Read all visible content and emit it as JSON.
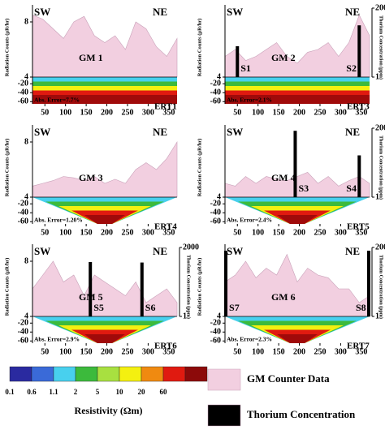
{
  "chart_data": [
    {
      "type": "area",
      "sw": "SW",
      "ne": "NE",
      "profile_label": "GM 1",
      "section_label": "ERT1",
      "error_label": "Abs. Error=7.7%",
      "y_label": "Radiation Counts (μR/hr)",
      "x": [
        20,
        45,
        70,
        95,
        120,
        145,
        170,
        195,
        220,
        245,
        270,
        295,
        320,
        345,
        370
      ],
      "series": [
        {
          "color": "#f2cfe0",
          "values": [
            8.5,
            8.2,
            7.5,
            6.8,
            8,
            8.4,
            7,
            6.5,
            7,
            6,
            8,
            7.5,
            6.2,
            5.5,
            6.8
          ]
        }
      ],
      "xlim": [
        20,
        370
      ],
      "xticks": [
        50,
        100,
        150,
        200,
        250,
        300,
        350
      ],
      "ylim": [
        4,
        9
      ],
      "yticks": [
        8,
        4
      ],
      "depth_lim": [
        -5,
        -65
      ],
      "depth_ticks": [
        -20,
        -40,
        -60
      ]
    },
    {
      "type": "area",
      "sw": "SW",
      "ne": "NE",
      "profile_label": "GM 2",
      "section_label": "ERT3",
      "error_label": "Abs. Error=2.1%",
      "y_label": "Radiation Counts (μR/hr)",
      "y2_label": "Thorium Concentration (ppm)",
      "x": [
        20,
        45,
        70,
        95,
        120,
        145,
        170,
        195,
        220,
        245,
        270,
        295,
        320,
        345,
        370
      ],
      "series": [
        {
          "color": "#f2cfe0",
          "values": [
            5.5,
            6,
            5.2,
            5.5,
            6,
            6.5,
            5.5,
            5,
            5.8,
            6,
            6.5,
            5.5,
            6.5,
            8.5,
            7
          ]
        }
      ],
      "thorium": {
        "color": "#000000",
        "labels": [
          "S1",
          "S2"
        ],
        "x": [
          50,
          345
        ],
        "values": [
          30,
          300
        ]
      },
      "xlim": [
        20,
        370
      ],
      "xticks": [
        50,
        100,
        150,
        200,
        250,
        300,
        350
      ],
      "ylim": [
        4,
        9
      ],
      "yticks": [
        4
      ],
      "y2lim": [
        1,
        2000
      ],
      "y2ticks": [
        2000,
        1
      ],
      "y2log": true,
      "depth_lim": [
        -5,
        -65
      ],
      "depth_ticks": [
        -20,
        -40,
        -60
      ]
    },
    {
      "type": "area",
      "sw": "SW",
      "ne": "NE",
      "profile_label": "GM 3",
      "section_label": "ERT4",
      "error_label": "Abs. Error=1.20%",
      "y_label": "Radiation Counts (μR/hr)",
      "x": [
        20,
        45,
        70,
        95,
        120,
        145,
        170,
        195,
        220,
        245,
        270,
        295,
        320,
        345,
        370
      ],
      "series": [
        {
          "color": "#f2cfe0",
          "values": [
            4.8,
            5,
            5.2,
            5.5,
            5.4,
            5.2,
            5.5,
            5,
            5.3,
            5,
            6,
            6.5,
            6,
            6.8,
            8
          ]
        }
      ],
      "xlim": [
        20,
        370
      ],
      "xticks": [
        50,
        100,
        150,
        200,
        250,
        300,
        350
      ],
      "ylim": [
        4,
        9
      ],
      "yticks": [
        8,
        4
      ],
      "depth_lim": [
        -5,
        -65
      ],
      "depth_ticks": [
        -20,
        -40,
        -60
      ]
    },
    {
      "type": "area",
      "sw": "SW",
      "ne": "NE",
      "profile_label": "GM 4",
      "section_label": "ERT5",
      "error_label": "Abs. Error=2.4%",
      "y_label": "Radiation Counts (μR/hr)",
      "y2_label": "Thorium Concentration (ppm)",
      "x": [
        20,
        45,
        70,
        95,
        120,
        145,
        170,
        195,
        220,
        245,
        270,
        295,
        320,
        345,
        370
      ],
      "series": [
        {
          "color": "#f2cfe0",
          "values": [
            5,
            4.8,
            5.5,
            5,
            5.5,
            5.3,
            5.2,
            5.5,
            5.8,
            5,
            5.5,
            4.8,
            5.2,
            5.5,
            5
          ]
        }
      ],
      "thorium": {
        "color": "#000000",
        "labels": [
          "S3",
          "S4"
        ],
        "x": [
          190,
          345
        ],
        "values": [
          1500,
          100
        ]
      },
      "xlim": [
        20,
        370
      ],
      "xticks": [
        50,
        100,
        150,
        200,
        250,
        300,
        350
      ],
      "ylim": [
        4,
        9
      ],
      "yticks": [
        4
      ],
      "y2lim": [
        1,
        2000
      ],
      "y2ticks": [
        2000,
        1
      ],
      "y2log": true,
      "depth_lim": [
        -5,
        -65
      ],
      "depth_ticks": [
        -20,
        -40,
        -60
      ]
    },
    {
      "type": "area",
      "sw": "SW",
      "ne": "NE",
      "profile_label": "GM 5",
      "section_label": "ERT6",
      "error_label": "Abs. Error=2.9%",
      "y_label": "Radiation Counts (μR/hr)",
      "y2_label": "Thorium Concentration (ppm)",
      "x": [
        20,
        45,
        70,
        95,
        120,
        145,
        170,
        195,
        220,
        245,
        270,
        295,
        320,
        345,
        370
      ],
      "series": [
        {
          "color": "#f2cfe0",
          "values": [
            6,
            7,
            8,
            6.5,
            7,
            5.5,
            7,
            6.5,
            6,
            5.5,
            6.5,
            5,
            5.5,
            6,
            5
          ]
        }
      ],
      "thorium": {
        "color": "#000000",
        "labels": [
          "S5",
          "S6"
        ],
        "x": [
          160,
          285
        ],
        "values": [
          400,
          380
        ]
      },
      "xlim": [
        20,
        370
      ],
      "xticks": [
        50,
        100,
        150,
        200,
        250,
        300,
        350
      ],
      "ylim": [
        4,
        9
      ],
      "yticks": [
        8,
        4
      ],
      "y2lim": [
        1,
        2000
      ],
      "y2ticks": [
        2000,
        1
      ],
      "y2log": true,
      "depth_lim": [
        -5,
        -65
      ],
      "depth_ticks": [
        -20,
        -40,
        -60
      ]
    },
    {
      "type": "area",
      "sw": "SW",
      "ne": "NE",
      "profile_label": "GM 6",
      "section_label": "ERT7",
      "error_label": "Abs. Error=2.3%",
      "y_label": "Radiation Counts (μR/hr)",
      "y2_label": "Thorium Concentration (ppm)",
      "x": [
        20,
        45,
        70,
        95,
        120,
        145,
        170,
        195,
        220,
        245,
        270,
        295,
        320,
        345,
        370
      ],
      "series": [
        {
          "color": "#f2cfe0",
          "values": [
            6.5,
            7,
            8,
            6.8,
            7.5,
            7,
            8.5,
            6.5,
            7.5,
            7,
            6.8,
            6,
            6,
            5,
            5.5
          ]
        }
      ],
      "thorium": {
        "color": "#000000",
        "labels": [
          "S7",
          "S8"
        ],
        "x": [
          22,
          368
        ],
        "values": [
          1400,
          1400
        ]
      },
      "xlim": [
        20,
        370
      ],
      "xticks": [
        50,
        100,
        150,
        200,
        250,
        300,
        350
      ],
      "ylim": [
        4,
        9
      ],
      "yticks": [
        4
      ],
      "y2lim": [
        1,
        2000
      ],
      "y2ticks": [
        2000,
        1
      ],
      "y2log": true,
      "depth_lim": [
        -5,
        -65
      ],
      "depth_ticks": [
        -20,
        -40,
        -60
      ]
    }
  ],
  "colorbar": {
    "label": "Resistivity (Ωm)",
    "ticks": [
      0.1,
      0.6,
      1.1,
      2,
      5,
      10,
      20,
      60
    ],
    "colors": [
      "#2a2aa0",
      "#3a6ad8",
      "#48d0ee",
      "#3cba3c",
      "#a8e040",
      "#f4f010",
      "#f08a10",
      "#e01a10",
      "#8c0a0a"
    ]
  },
  "legend": [
    {
      "name": "GM Counter Data",
      "color": "#f2cfe0"
    },
    {
      "name": "Thorium Concentration",
      "color": "#000000"
    }
  ]
}
